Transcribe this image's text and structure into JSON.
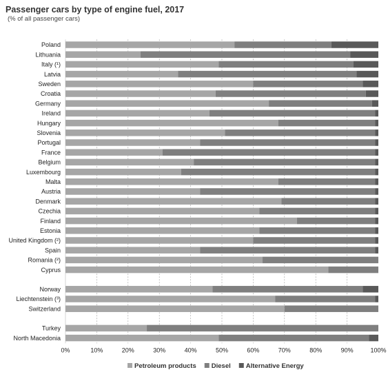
{
  "chart_data": {
    "type": "bar",
    "orientation": "horizontal",
    "stacked": "percent",
    "title": "Passenger cars by type of engine fuel, 2017",
    "subtitle": "(% of all passenger cars)",
    "xlabel": "",
    "ylabel": "",
    "xlim": [
      0,
      100
    ],
    "x_ticks": [
      "0%",
      "10%",
      "20%",
      "30%",
      "40%",
      "50%",
      "60%",
      "70%",
      "80%",
      "90%",
      "100%"
    ],
    "grid": "vertical dashed",
    "legend_position": "bottom",
    "categories": [
      "Poland",
      "Lithuania",
      "Italy (¹)",
      "Latvia",
      "Sweden",
      "Croatia",
      "Germany",
      "Ireland",
      "Hungary",
      "Slovenia",
      "Portugal",
      "France",
      "Belgium",
      "Luxembourg",
      "Malta",
      "Austria",
      "Denmark",
      "Czechia",
      "Finland",
      "Estonia",
      "United Kingdom (²)",
      "Spain",
      "Romania (²)",
      "Cyprus",
      "Norway",
      "Liechtenstein (³)",
      "Switzerland",
      "Turkey",
      "North Macedonia"
    ],
    "groups": [
      24,
      3,
      2
    ],
    "series": [
      {
        "name": "Petroleum products",
        "color": "#a6a6a6",
        "values": [
          54,
          24,
          49,
          36,
          60,
          48,
          65,
          46,
          68,
          51,
          43,
          31,
          41,
          37,
          68,
          43,
          69,
          62,
          74,
          62,
          60,
          43,
          63,
          84,
          47,
          67,
          70,
          26,
          49
        ]
      },
      {
        "name": "Diesel",
        "color": "#7f7f7f",
        "values": [
          31,
          67,
          43,
          57,
          35,
          48,
          33,
          53,
          31,
          48,
          56,
          68,
          58,
          62,
          31,
          56,
          30,
          37,
          25,
          37,
          39,
          56,
          37,
          16,
          48,
          32,
          30,
          74,
          48
        ]
      },
      {
        "name": "Alternative Energy",
        "color": "#595959",
        "values": [
          15,
          9,
          8,
          7,
          5,
          4,
          2,
          1,
          1,
          1,
          1,
          1,
          1,
          1,
          1,
          1,
          1,
          1,
          1,
          1,
          1,
          1,
          0,
          0,
          5,
          1,
          0,
          0,
          3
        ]
      }
    ]
  }
}
